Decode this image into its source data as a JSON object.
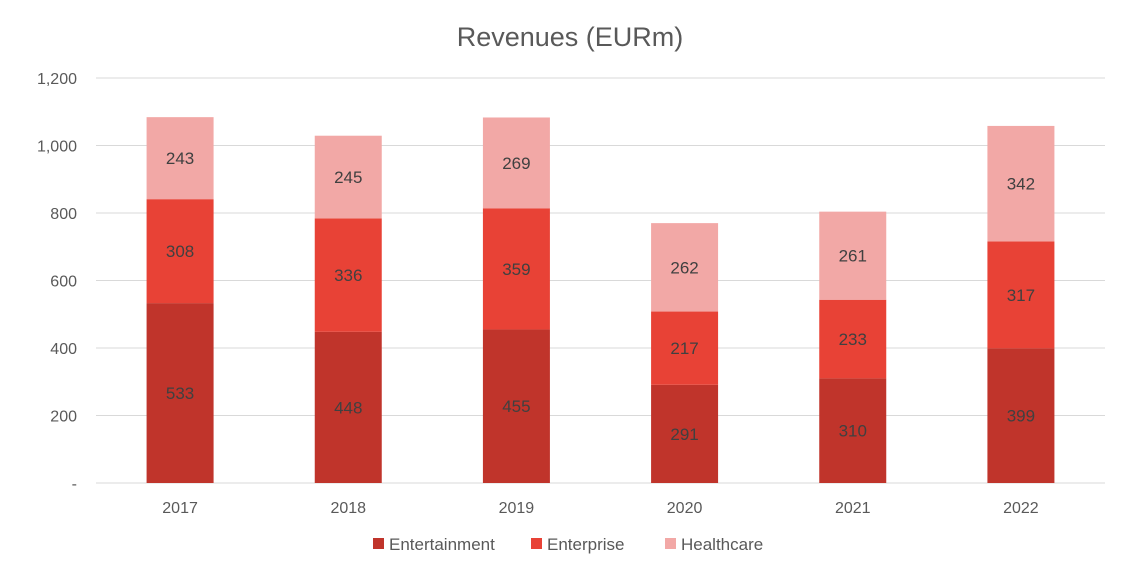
{
  "chart_data": {
    "type": "bar",
    "stacked": true,
    "title": "Revenues (EURm)",
    "xlabel": "",
    "ylabel": "",
    "categories": [
      "2017",
      "2018",
      "2019",
      "2020",
      "2021",
      "2022"
    ],
    "series": [
      {
        "name": "Entertainment",
        "color": "#c0342b",
        "values": [
          533,
          448,
          455,
          291,
          310,
          399
        ]
      },
      {
        "name": "Enterprise",
        "color": "#e84236",
        "values": [
          308,
          336,
          359,
          217,
          233,
          317
        ]
      },
      {
        "name": "Healthcare",
        "color": "#f2a8a6",
        "values": [
          243,
          245,
          269,
          262,
          261,
          342
        ]
      }
    ],
    "ylim": [
      0,
      1200
    ],
    "yticks": [
      {
        "value": 0,
        "label": "-"
      },
      {
        "value": 200,
        "label": "200"
      },
      {
        "value": 400,
        "label": "400"
      },
      {
        "value": 600,
        "label": "600"
      },
      {
        "value": 800,
        "label": "800"
      },
      {
        "value": 1000,
        "label": "1,000"
      },
      {
        "value": 1200,
        "label": "1,200"
      }
    ],
    "grid": true,
    "legend_position": "bottom"
  }
}
